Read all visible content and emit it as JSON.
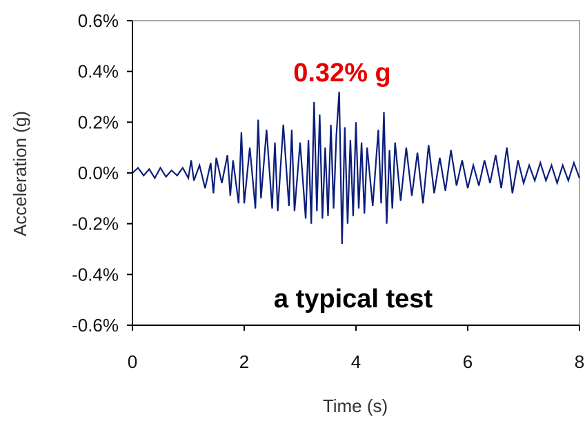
{
  "chart_data": {
    "type": "line",
    "xlabel": "Time (s)",
    "ylabel": "Acceleration (g)",
    "xlim": [
      0,
      8
    ],
    "ylim": [
      -0.6,
      0.6
    ],
    "x_ticks": [
      "0",
      "2",
      "4",
      "6",
      "8"
    ],
    "x_tick_values": [
      0,
      2,
      4,
      6,
      8
    ],
    "y_ticks": [
      "0.6%",
      "0.4%",
      "0.2%",
      "0.0%",
      "-0.2%",
      "-0.4%",
      "-0.6%"
    ],
    "y_tick_values": [
      0.6,
      0.4,
      0.2,
      0.0,
      -0.2,
      -0.4,
      -0.6
    ],
    "grid": false,
    "series": [
      {
        "color": "#0b1e7a",
        "x": [
          0.0,
          0.1,
          0.2,
          0.3,
          0.4,
          0.5,
          0.6,
          0.7,
          0.8,
          0.9,
          1.0,
          1.05,
          1.1,
          1.2,
          1.3,
          1.4,
          1.45,
          1.5,
          1.6,
          1.7,
          1.75,
          1.8,
          1.9,
          1.95,
          2.0,
          2.1,
          2.2,
          2.25,
          2.3,
          2.4,
          2.5,
          2.55,
          2.6,
          2.7,
          2.8,
          2.85,
          2.9,
          3.0,
          3.1,
          3.15,
          3.2,
          3.25,
          3.3,
          3.35,
          3.4,
          3.45,
          3.5,
          3.55,
          3.6,
          3.65,
          3.7,
          3.75,
          3.8,
          3.85,
          3.9,
          3.95,
          4.0,
          4.05,
          4.1,
          4.15,
          4.2,
          4.3,
          4.4,
          4.45,
          4.5,
          4.55,
          4.6,
          4.65,
          4.7,
          4.8,
          4.9,
          5.0,
          5.1,
          5.2,
          5.3,
          5.4,
          5.5,
          5.6,
          5.7,
          5.8,
          5.9,
          6.0,
          6.1,
          6.2,
          6.3,
          6.4,
          6.5,
          6.6,
          6.7,
          6.8,
          6.9,
          7.0,
          7.1,
          7.2,
          7.3,
          7.4,
          7.5,
          7.6,
          7.7,
          7.8,
          7.9,
          8.0
        ],
        "y": [
          0.0,
          0.02,
          -0.01,
          0.015,
          -0.02,
          0.02,
          -0.015,
          0.01,
          -0.01,
          0.02,
          -0.02,
          0.05,
          -0.03,
          0.03,
          -0.06,
          0.04,
          -0.08,
          0.06,
          -0.04,
          0.07,
          -0.09,
          0.05,
          -0.12,
          0.16,
          -0.12,
          0.1,
          -0.14,
          0.21,
          -0.1,
          0.17,
          -0.14,
          0.12,
          -0.15,
          0.19,
          -0.13,
          0.17,
          -0.15,
          0.12,
          -0.18,
          0.13,
          -0.2,
          0.28,
          -0.15,
          0.23,
          -0.18,
          0.1,
          -0.17,
          0.19,
          -0.14,
          0.15,
          0.32,
          -0.28,
          0.18,
          -0.2,
          0.13,
          -0.17,
          0.2,
          -0.14,
          0.12,
          -0.16,
          0.1,
          -0.13,
          0.17,
          -0.12,
          0.24,
          -0.2,
          0.09,
          -0.14,
          0.12,
          -0.11,
          0.1,
          -0.09,
          0.08,
          -0.12,
          0.11,
          -0.08,
          0.06,
          -0.07,
          0.09,
          -0.05,
          0.05,
          -0.06,
          0.03,
          -0.05,
          0.05,
          -0.04,
          0.07,
          -0.06,
          0.1,
          -0.08,
          0.05,
          -0.04,
          0.03,
          -0.03,
          0.04,
          -0.03,
          0.03,
          -0.04,
          0.03,
          -0.03,
          0.04,
          -0.02
        ]
      }
    ],
    "annotations": [
      {
        "text": "0.32% g",
        "color": "#e60000"
      },
      {
        "text": "a typical test",
        "color": "#000000"
      }
    ]
  }
}
